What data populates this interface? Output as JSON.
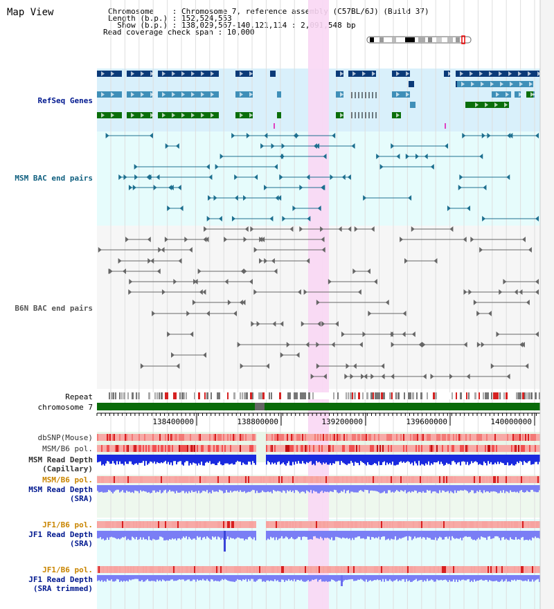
{
  "title": "Map View",
  "header": {
    "lines": [
      "Chromosome    : Chromosome 7, reference assembly (C57BL/6J) (Build 37)",
      "Length (b.p.) : 152,524,553",
      "  Show (b.p.) : 138,029,567-140,121,114 : 2,091,548 bp",
      "Read coverage check span : 10,000"
    ]
  },
  "tracks": {
    "refseq": "RefSeq Genes",
    "msm_bac": "MSM BAC end pairs",
    "b6n_bac": "B6N BAC end pairs",
    "repeat": "Repeat",
    "chromosome": "chromosome 7",
    "dbsnp": "dbSNP(Mouse)",
    "msm_b6_pol": "MSM/B6 pol.",
    "msm_read_depth_cap_1": "MSM Read Depth",
    "msm_read_depth_cap_2": "(Capillary)",
    "msm_b6_pol_sra": "MSM/B6 pol.",
    "msm_read_depth_sra_1": "MSM Read Depth",
    "msm_read_depth_sra_2": "(SRA)",
    "jf1_b6_pol": "JF1/B6 pol.",
    "jf1_read_depth_1": "JF1 Read Depth",
    "jf1_read_depth_2": "(SRA)",
    "jf1_b6_pol_trim": "JF1/B6 pol.",
    "jf1_read_depth_trim_1": "JF1 Read Depth",
    "jf1_read_depth_trim_2": "(SRA trimmed)"
  },
  "ruler": {
    "ticks": [
      "138400000",
      "138800000",
      "139200000",
      "139600000",
      "140000000"
    ]
  },
  "colors": {
    "refseq_bg": "#d9f0fb",
    "msm_bac_bg": "#e6fcfc",
    "b6n_bac_bg": "#f6f6f6",
    "highlight": "#f9d7f4",
    "chromosome_bar": "#0a6b0a",
    "gene_dark": "#0b3a78",
    "gene_mid": "#3f8fb8",
    "gene_green": "#0a6e0a",
    "pol_red": "#e8433f",
    "depth_blue": "#1a2adf",
    "depth_light_blue": "#7a7ef5",
    "label_dark_blue": "#00188f",
    "label_orange": "#c98500",
    "label_gray": "#333333",
    "msm_bac_label": "#0f5f7f",
    "b6n_bac_label": "#555555"
  }
}
